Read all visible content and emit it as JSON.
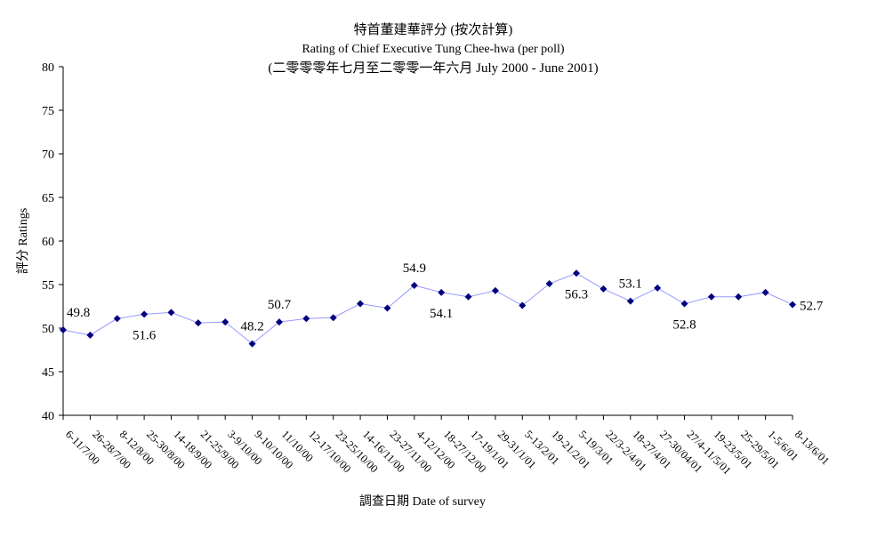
{
  "chart_data": {
    "type": "line",
    "title": "特首董建華評分 (按次計算)",
    "subtitle": "Rating of Chief Executive Tung Chee-hwa  (per poll)",
    "subtitle2": "(二零零零年七月至二零零一年六月 July 2000 - June 2001)",
    "xlabel": "調查日期 Date of survey",
    "ylabel": "評分 Ratings",
    "ylim": [
      40,
      80
    ],
    "yticks": [
      40,
      45,
      50,
      55,
      60,
      65,
      70,
      75,
      80
    ],
    "grid": false,
    "line_color": "#9999ff",
    "marker_color": "#000080",
    "categories": [
      "6-11/7/00",
      "26-28/7/00",
      "8-12/8/00",
      "25-30/8/00",
      "14-18/9/00",
      "21-25/9/00",
      "3-9/10/00",
      "9-10/10/00",
      "11/10/00",
      "12-17/10/00",
      "23-25/10/00",
      "14-16/11/00",
      "23-27/11/00",
      "4-12/12/00",
      "18-27/12/00",
      "17-19/1/01",
      "29-31/1/01",
      "5-13/2/01",
      "19-21/2/01",
      "5-19/3/01",
      "22/3-2/4/01",
      "18-27/4/01",
      "27-30/04/01",
      "27/4-11/5/01",
      "19-23/5/01",
      "25-29/5/01",
      "1-5/6/01",
      "8-13/6/01"
    ],
    "values": [
      49.8,
      49.2,
      51.1,
      51.6,
      51.8,
      50.6,
      50.7,
      48.2,
      50.7,
      51.1,
      51.2,
      52.8,
      52.3,
      54.9,
      54.1,
      53.6,
      54.3,
      52.6,
      55.1,
      56.3,
      54.5,
      53.1,
      54.6,
      52.8,
      53.6,
      53.6,
      54.1,
      52.7
    ],
    "data_labels": [
      {
        "index": 0,
        "text": "49.8",
        "pos": "above"
      },
      {
        "index": 3,
        "text": "51.6",
        "pos": "below"
      },
      {
        "index": 7,
        "text": "48.2",
        "pos": "above"
      },
      {
        "index": 8,
        "text": "50.7",
        "pos": "above"
      },
      {
        "index": 13,
        "text": "54.9",
        "pos": "above"
      },
      {
        "index": 14,
        "text": "54.1",
        "pos": "below"
      },
      {
        "index": 19,
        "text": "56.3",
        "pos": "below"
      },
      {
        "index": 21,
        "text": "53.1",
        "pos": "above"
      },
      {
        "index": 23,
        "text": "52.8",
        "pos": "below"
      },
      {
        "index": 27,
        "text": "52.7",
        "pos": "right"
      }
    ]
  }
}
